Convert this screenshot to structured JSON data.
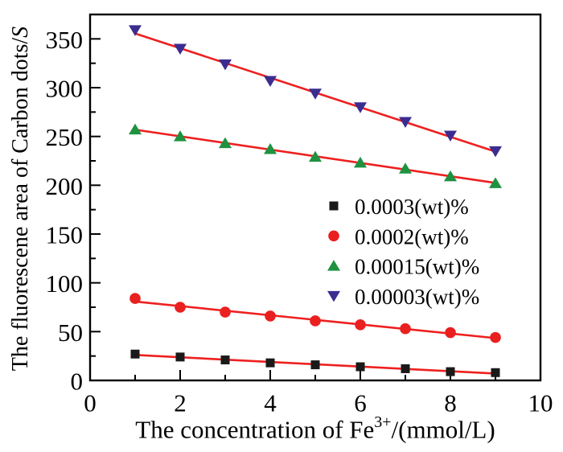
{
  "chart_data": {
    "type": "scatter",
    "x": [
      1,
      2,
      3,
      4,
      5,
      6,
      7,
      8,
      9
    ],
    "series": [
      {
        "name": "0.0003(wt)%",
        "marker": "square",
        "color": "#1a1a1a",
        "values": [
          27,
          24,
          21,
          18,
          16,
          14,
          12,
          9,
          8
        ]
      },
      {
        "name": "0.0002(wt)%",
        "marker": "circle",
        "color": "#e9201f",
        "values": [
          84,
          75,
          70,
          66,
          61,
          57,
          53,
          49,
          44
        ]
      },
      {
        "name": "0.00015(wt)%",
        "marker": "triangle-up",
        "color": "#1f9240",
        "values": [
          257,
          250,
          243,
          237,
          229,
          223,
          217,
          209,
          202
        ]
      },
      {
        "name": "0.00003(wt)%",
        "marker": "triangle-down",
        "color": "#3b2d90",
        "values": [
          359,
          340,
          324,
          307,
          294,
          280,
          265,
          251,
          235
        ]
      }
    ],
    "fit_lines": {
      "show": true,
      "color": "#ee2020"
    },
    "axes": {
      "xlim": [
        0,
        10
      ],
      "ylim": [
        0,
        375
      ],
      "xticks": [
        0,
        2,
        4,
        6,
        8,
        10
      ],
      "xminorticks": [
        1,
        3,
        5,
        7,
        9
      ],
      "yticks": [
        0,
        50,
        100,
        150,
        200,
        250,
        300,
        350
      ],
      "yminorticks": [
        25,
        75,
        125,
        175,
        225,
        275,
        325
      ],
      "frame": true,
      "grid": false
    },
    "xlabel": {
      "prefix": "The concentration of Fe",
      "sup": "3+",
      "suffix": "/(mmol/L)"
    },
    "ylabel": {
      "prefix": "The fluorescene area of Carbon dots/",
      "italic": "S"
    },
    "legend": {
      "position": "center-right",
      "frame": false
    },
    "colors": {
      "axis": "#000000",
      "background": "#ffffff"
    }
  }
}
